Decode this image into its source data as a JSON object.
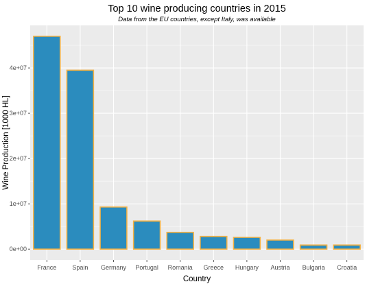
{
  "chart_data": {
    "type": "bar",
    "title": "Top 10 wine producing countries in 2015",
    "subtitle": "Data from the EU countries, except Italy, was available",
    "xlabel": "Country",
    "ylabel": "Wine Production [1000 HL]",
    "categories": [
      "France",
      "Spain",
      "Germany",
      "Portugal",
      "Romania",
      "Greece",
      "Hungary",
      "Austria",
      "Bulgaria",
      "Croatia"
    ],
    "values": [
      47000000,
      39500000,
      9300000,
      6200000,
      3700000,
      2800000,
      2600000,
      2000000,
      900000,
      900000
    ],
    "ylim": [
      -2400000,
      49400000
    ],
    "yticks": [
      0,
      10000000,
      20000000,
      30000000,
      40000000
    ],
    "ytick_labels": [
      "0e+00",
      "1e+07",
      "2e+07",
      "3e+07",
      "4e+07"
    ],
    "bar_fill": "#2b8cbe",
    "bar_outline": "#f4b244",
    "panel_color": "#ebebeb",
    "grid": true,
    "legend": "none"
  }
}
